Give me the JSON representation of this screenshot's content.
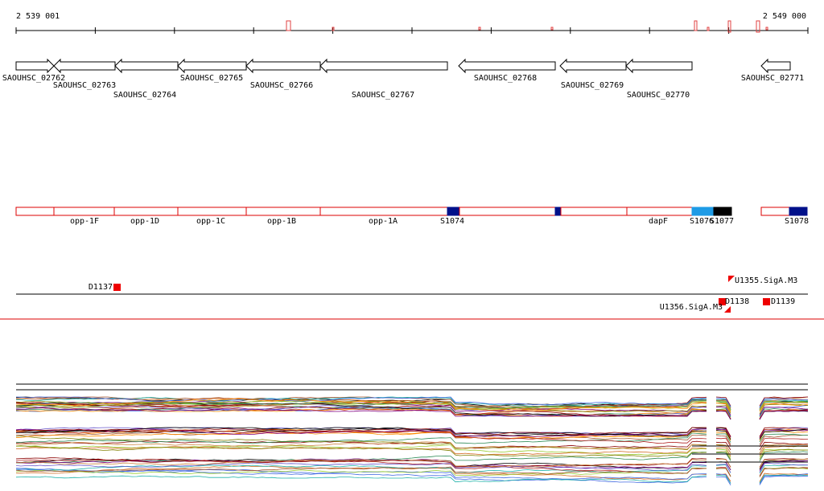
{
  "ruler": {
    "start": "2 539 001",
    "end": "2 549 000"
  },
  "genes": [
    {
      "label": "SAOUHSC_02762"
    },
    {
      "label": "SAOUHSC_02763"
    },
    {
      "label": "SAOUHSC_02764"
    },
    {
      "label": "SAOUHSC_02765"
    },
    {
      "label": "SAOUHSC_02766"
    },
    {
      "label": "SAOUHSC_02767"
    },
    {
      "label": "SAOUHSC_02768"
    },
    {
      "label": "SAOUHSC_02769"
    },
    {
      "label": "SAOUHSC_02770"
    },
    {
      "label": "SAOUHSC_02771"
    }
  ],
  "regions": [
    {
      "label": "opp-1F"
    },
    {
      "label": "opp-1D"
    },
    {
      "label": "opp-1C"
    },
    {
      "label": "opp-1B"
    },
    {
      "label": "opp-1A"
    },
    {
      "label": "S1074"
    },
    {
      "label": "dapF"
    },
    {
      "label": "S1076"
    },
    {
      "label": "S1077"
    },
    {
      "label": "S1078"
    }
  ],
  "features": [
    {
      "label": "D1137"
    },
    {
      "label": "U1355.SigA.M3"
    },
    {
      "label": "D1138"
    },
    {
      "label": "U1356.SigA.M3"
    },
    {
      "label": "D1139"
    }
  ]
}
